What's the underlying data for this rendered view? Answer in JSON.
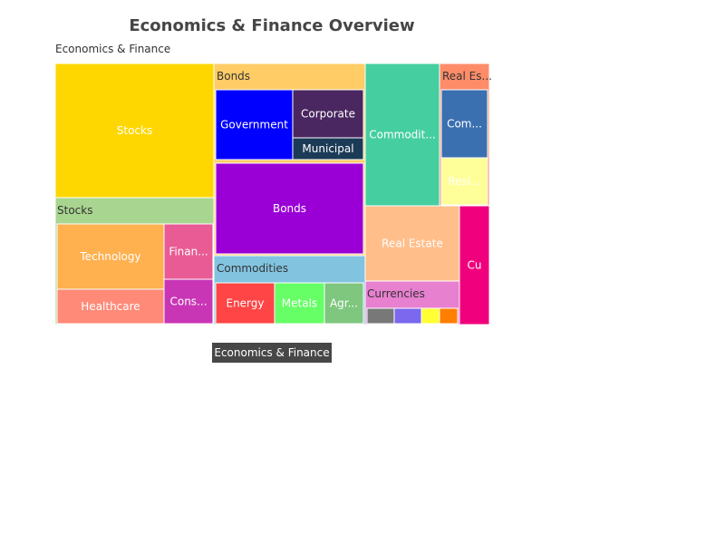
{
  "chart_data": {
    "type": "treemap",
    "title": "Economics & Finance Overview",
    "root": {
      "name": "Economics & Finance",
      "children": [
        {
          "name": "Stocks",
          "color": "#A8D58F",
          "children": [
            {
              "name": "Stocks",
              "value": 50,
              "color": "#FFD700"
            },
            {
              "name": "Technology",
              "value": 10,
              "color": "#FFB04F"
            },
            {
              "name": "Healthcare",
              "value": 6,
              "color": "#FF8A78"
            },
            {
              "name": "Financials",
              "value": 5,
              "color": "#E85B94"
            },
            {
              "name": "Consumer",
              "value": 5,
              "color": "#C836B5"
            }
          ]
        },
        {
          "name": "Bonds",
          "color": "#FFCC66",
          "children": [
            {
              "name": "Bonds",
              "value": 24,
              "color": "#9A00D6"
            },
            {
              "name": "Government",
              "value": 11,
              "color": "#0000FF"
            },
            {
              "name": "Corporate",
              "value": 8,
              "color": "#4A2760"
            },
            {
              "name": "Municipal",
              "value": 4,
              "color": "#1B3B57"
            }
          ]
        },
        {
          "name": "Commodities",
          "color": "#82C4E0",
          "children": [
            {
              "name": "Energy",
              "value": 5,
              "color": "#FF4545"
            },
            {
              "name": "Metals",
              "value": 4,
              "color": "#66FF66"
            },
            {
              "name": "Agriculture",
              "value": 3,
              "color": "#7FC77F"
            }
          ]
        },
        {
          "name": "Commodities",
          "value": 18,
          "color": "#45CFA0"
        },
        {
          "name": "Real Estate",
          "color": "#FF8C69",
          "children": [
            {
              "name": "Commercial",
              "value": 5,
              "color": "#3A6FB0"
            },
            {
              "name": "Residential",
              "value": 3,
              "color": "#FFFF99"
            }
          ]
        },
        {
          "name": "Real Estate",
          "value": 12,
          "color": "#FFBE8A"
        },
        {
          "name": "Currencies",
          "color": "#E880D0",
          "children": [
            {
              "name": "",
              "value": 2,
              "color": "#787878"
            },
            {
              "name": "",
              "value": 2,
              "color": "#7B68EE"
            },
            {
              "name": "",
              "value": 1.5,
              "color": "#FFFF33"
            },
            {
              "name": "",
              "value": 1.5,
              "color": "#FF7F00"
            }
          ]
        },
        {
          "name": "Cu",
          "value": 6,
          "color": "#F0007C"
        }
      ]
    }
  },
  "labels": {
    "title": "Economics & Finance Overview",
    "root_label": "Economics & Finance",
    "breadcrumb": "Economics & Finance",
    "groups": {
      "stocks": "Stocks",
      "bonds": "Bonds",
      "commodities": "Commodities",
      "real_estate": "Real Es...",
      "currencies": "Currencies"
    },
    "leaves": {
      "stocks": "Stocks",
      "technology": "Technology",
      "healthcare": "Healthcare",
      "financials": "Finan...",
      "consumer": "Cons...",
      "government": "Government",
      "corporate": "Corporate",
      "municipal": "Municipal",
      "bonds": "Bonds",
      "energy": "Energy",
      "metals": "Metals",
      "agriculture": "Agr...",
      "commodities": "Commodit...",
      "commercial": "Com...",
      "residential": "Resi...",
      "real_estate": "Real Estate",
      "cu": "Cu"
    }
  }
}
